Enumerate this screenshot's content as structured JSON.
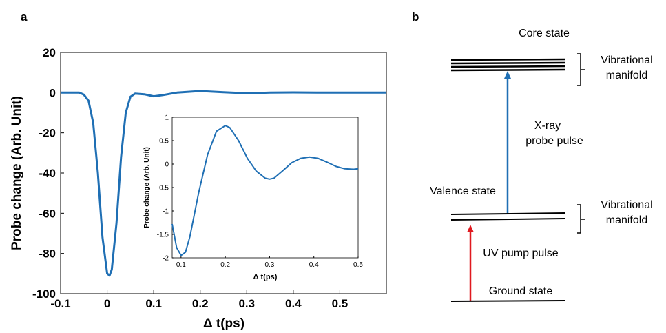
{
  "panel_a": {
    "label": "a",
    "main_chart": {
      "type": "line",
      "xlabel": "Δ t(ps)",
      "ylabel": "Probe change (Arb. Unit)",
      "xlim": [
        -0.1,
        0.6
      ],
      "ylim": [
        -100,
        20
      ],
      "xticks": [
        -0.1,
        0,
        0.1,
        0.2,
        0.3,
        0.4,
        0.5
      ],
      "xtick_labels": [
        "-0.1",
        "0",
        "0.1",
        "0.2",
        "0.3",
        "0.4",
        "0.5"
      ],
      "yticks": [
        -100,
        -80,
        -60,
        -40,
        -20,
        0,
        20
      ],
      "ytick_labels": [
        "-100",
        "-80",
        "-60",
        "-40",
        "-20",
        "0",
        "20"
      ],
      "series_color": "#1f6fb4",
      "x": [
        -0.1,
        -0.06,
        -0.05,
        -0.04,
        -0.03,
        -0.02,
        -0.01,
        0.0,
        0.005,
        0.01,
        0.02,
        0.03,
        0.04,
        0.05,
        0.06,
        0.08,
        0.1,
        0.12,
        0.15,
        0.2,
        0.25,
        0.3,
        0.35,
        0.4,
        0.45,
        0.5,
        0.55,
        0.6
      ],
      "y": [
        0,
        0,
        -1,
        -4,
        -15,
        -40,
        -72,
        -90,
        -91,
        -88,
        -65,
        -32,
        -10,
        -2,
        -0.5,
        -0.8,
        -1.8,
        -1.2,
        0,
        0.8,
        0.2,
        -0.3,
        0,
        0.1,
        0,
        0,
        0,
        0
      ]
    },
    "inset_chart": {
      "type": "line",
      "xlabel": "Δ t(ps)",
      "ylabel": "Probe change (Arb. Unit)",
      "xlim": [
        0.08,
        0.5
      ],
      "ylim": [
        -2,
        1
      ],
      "xticks": [
        0.1,
        0.2,
        0.3,
        0.4,
        0.5
      ],
      "xtick_labels": [
        "0.1",
        "0.2",
        "0.3",
        "0.4",
        "0.5"
      ],
      "yticks": [
        -2,
        -1.5,
        -1,
        -0.5,
        0,
        0.5,
        1
      ],
      "ytick_labels": [
        "-2",
        "-1.5",
        "-1",
        "-0.5",
        "0",
        "0.5",
        "1"
      ],
      "series_color": "#1f6fb4",
      "x": [
        0.08,
        0.09,
        0.1,
        0.11,
        0.12,
        0.14,
        0.16,
        0.18,
        0.2,
        0.21,
        0.23,
        0.25,
        0.27,
        0.29,
        0.3,
        0.31,
        0.33,
        0.35,
        0.37,
        0.39,
        0.41,
        0.43,
        0.45,
        0.47,
        0.49,
        0.5
      ],
      "y": [
        -1.28,
        -1.78,
        -1.95,
        -1.88,
        -1.55,
        -0.6,
        0.2,
        0.7,
        0.82,
        0.78,
        0.5,
        0.12,
        -0.15,
        -0.3,
        -0.32,
        -0.3,
        -0.14,
        0.03,
        0.12,
        0.15,
        0.12,
        0.04,
        -0.05,
        -0.1,
        -0.11,
        -0.1
      ]
    }
  },
  "panel_b": {
    "label": "b",
    "core_state": "Core state",
    "vibrational_manifold_top_line1": "Vibrational",
    "vibrational_manifold_top_line2": "manifold",
    "xray_line1": "X-ray",
    "xray_line2": "probe pulse",
    "valence_state": "Valence state",
    "vibrational_manifold_bottom_line1": "Vibrational",
    "vibrational_manifold_bottom_line2": "manifold",
    "uv_pump": "UV pump pulse",
    "ground_state": "Ground state",
    "xray_arrow_color": "#1f6fb4",
    "uv_arrow_color": "#e0191f"
  }
}
